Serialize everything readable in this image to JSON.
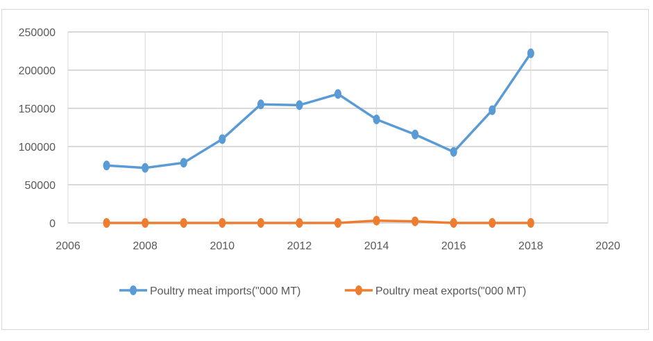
{
  "chart_data": {
    "type": "scatter-line",
    "x": [
      2007,
      2008,
      2009,
      2010,
      2011,
      2012,
      2013,
      2014,
      2015,
      2016,
      2017,
      2018
    ],
    "series": [
      {
        "name": "Poultry meat imports(\"000 MT)",
        "color": "#5b9bd5",
        "values": [
          75200,
          72100,
          78800,
          109700,
          155200,
          154200,
          168800,
          135500,
          115800,
          93000,
          147600,
          222000
        ]
      },
      {
        "name": "Poultry meat exports(\"000 MT)",
        "color": "#ed7d31",
        "values": [
          0,
          0,
          0,
          0,
          0,
          0,
          0,
          3000,
          2100,
          0,
          0,
          0
        ]
      }
    ],
    "xlim": [
      2006,
      2020
    ],
    "ylim": [
      0,
      250000
    ],
    "xticks": [
      "2006",
      "2008",
      "2010",
      "2012",
      "2014",
      "2016",
      "2018",
      "2020"
    ],
    "yticks": [
      "0",
      "50000",
      "100000",
      "150000",
      "200000",
      "250000"
    ],
    "grid": true,
    "legend": "bottom"
  }
}
